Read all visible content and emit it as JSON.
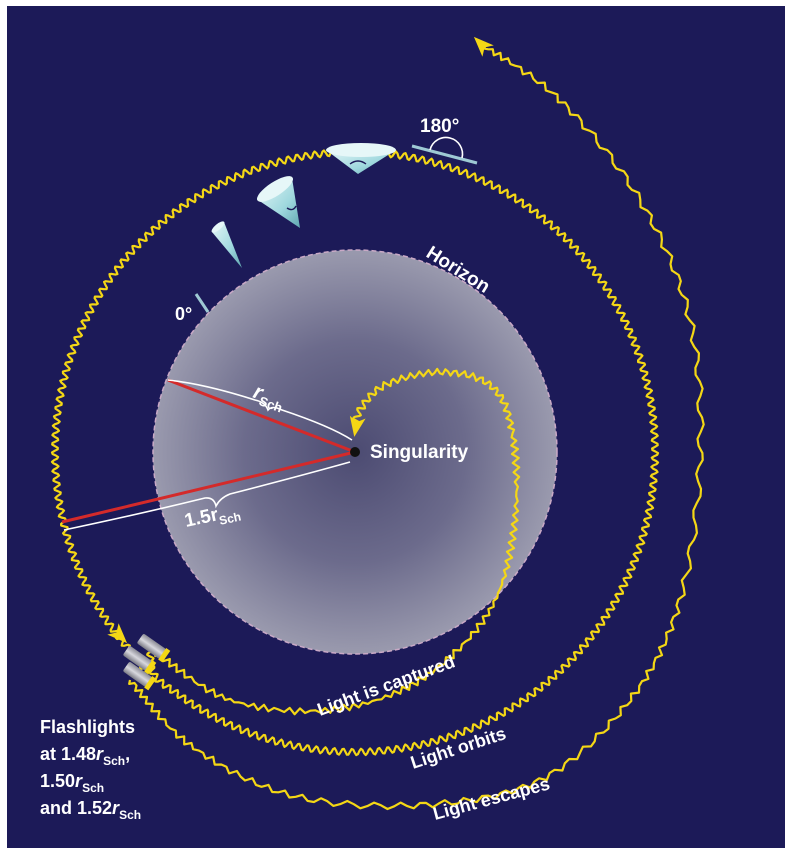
{
  "labels": {
    "horizon": "Horizon",
    "singularity": "Singularity",
    "angle_start": "0°",
    "angle_end": "180°",
    "r_sch_main": "r",
    "r_sch_sub": "Sch",
    "r15_main": "1.5r",
    "r15_sub": "Sch",
    "captured": "Light is captured",
    "orbits": "Light orbits",
    "escapes": "Light escapes"
  },
  "flashlights": {
    "line1": "Flashlights",
    "line2_prefix": "at 1.48",
    "line2_r": "r",
    "line2_sub": "Sch",
    "line2_suffix": ",",
    "line3_prefix": "1.50",
    "line3_r": "r",
    "line3_sub": "Sch",
    "line4_prefix": "and 1.52",
    "line4_r": "r",
    "line4_sub": "Sch"
  },
  "colors": {
    "background": "#1c1a58",
    "light_path": "#f4d715",
    "radius_line": "#d42a2a",
    "horizon_fill": "#8a8aa0",
    "cone": "#9fd8de"
  }
}
